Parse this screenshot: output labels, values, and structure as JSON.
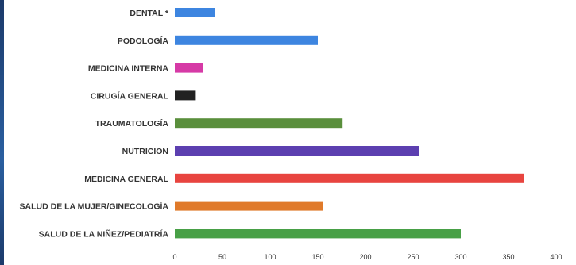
{
  "chart_data": {
    "type": "bar",
    "orientation": "horizontal",
    "categories": [
      "DENTAL *",
      "PODOLOGÍA",
      "MEDICINA INTERNA",
      "CIRUGÍA GENERAL",
      "TRAUMATOLOGÍA",
      "NUTRICION",
      "MEDICINA GENERAL",
      "SALUD DE LA MUJER/GINECOLOGÍA",
      "SALUD DE LA NIÑEZ/PEDIATRÍA"
    ],
    "values": [
      42,
      150,
      30,
      22,
      176,
      256,
      366,
      155,
      300
    ],
    "colors": [
      "#3d85e0",
      "#3d85e0",
      "#d63aa6",
      "#222222",
      "#5a8f3c",
      "#5c3fb0",
      "#e8443f",
      "#e07a2a",
      "#48a046"
    ],
    "xlim": [
      0,
      400
    ],
    "xticks": [
      "0",
      "50",
      "100",
      "150",
      "200",
      "250",
      "300",
      "350",
      "400"
    ],
    "grid": false,
    "legend": "none",
    "title": "",
    "xlabel": "",
    "ylabel": ""
  }
}
